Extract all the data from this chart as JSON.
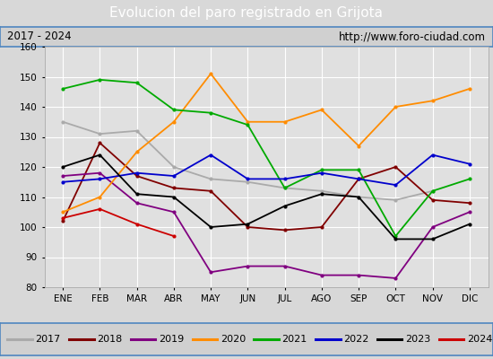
{
  "title": "Evolucion del paro registrado en Grijota",
  "subtitle_left": "2017 - 2024",
  "subtitle_right": "http://www.foro-ciudad.com",
  "months": [
    "ENE",
    "FEB",
    "MAR",
    "ABR",
    "MAY",
    "JUN",
    "JUL",
    "AGO",
    "SEP",
    "OCT",
    "NOV",
    "DIC"
  ],
  "ylim": [
    80,
    160
  ],
  "yticks": [
    80,
    90,
    100,
    110,
    120,
    130,
    140,
    150,
    160
  ],
  "series": {
    "2017": {
      "color": "#aaaaaa",
      "values": [
        135,
        131,
        132,
        120,
        116,
        115,
        113,
        112,
        110,
        109,
        112,
        null
      ]
    },
    "2018": {
      "color": "#800000",
      "values": [
        102,
        128,
        117,
        113,
        112,
        100,
        99,
        100,
        116,
        120,
        109,
        108
      ]
    },
    "2019": {
      "color": "#800080",
      "values": [
        117,
        118,
        108,
        105,
        85,
        87,
        87,
        84,
        84,
        83,
        100,
        105
      ]
    },
    "2020": {
      "color": "#ff8c00",
      "values": [
        105,
        110,
        125,
        135,
        151,
        135,
        135,
        139,
        127,
        140,
        142,
        146
      ]
    },
    "2021": {
      "color": "#00aa00",
      "values": [
        146,
        149,
        148,
        139,
        138,
        134,
        113,
        119,
        119,
        97,
        112,
        116
      ]
    },
    "2022": {
      "color": "#0000cc",
      "values": [
        115,
        116,
        118,
        117,
        124,
        116,
        116,
        118,
        116,
        114,
        124,
        121
      ]
    },
    "2023": {
      "color": "#000000",
      "values": [
        120,
        124,
        111,
        110,
        100,
        101,
        107,
        111,
        110,
        96,
        96,
        101
      ]
    },
    "2024": {
      "color": "#cc0000",
      "values": [
        103,
        106,
        101,
        97,
        null,
        null,
        null,
        null,
        null,
        null,
        null,
        null
      ]
    }
  },
  "legend_order": [
    "2017",
    "2018",
    "2019",
    "2020",
    "2021",
    "2022",
    "2023",
    "2024"
  ],
  "bg_color": "#d8d8d8",
  "plot_bg_color": "#e0e0e0",
  "title_bg_color": "#4f86c0",
  "title_fg_color": "#ffffff",
  "subtitle_bg_color": "#d0d0d0",
  "grid_color": "#ffffff",
  "border_color": "#4f86c0"
}
